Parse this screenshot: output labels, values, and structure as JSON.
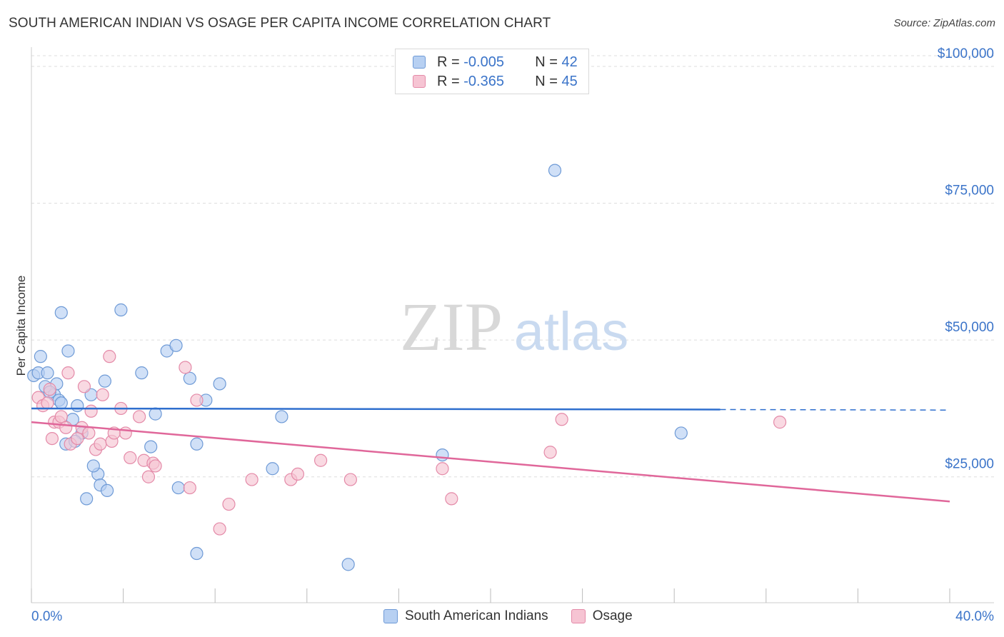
{
  "title": "SOUTH AMERICAN INDIAN VS OSAGE PER CAPITA INCOME CORRELATION CHART",
  "source": "Source: ZipAtlas.com",
  "watermark": {
    "zip": "ZIP",
    "atlas": "atlas"
  },
  "legend_stats": [
    {
      "r_label": "R =",
      "r_value": "-0.005",
      "n_label": "N =",
      "n_value": "42"
    },
    {
      "r_label": "R =",
      "r_value": "-0.365",
      "n_label": "N =",
      "n_value": "45"
    }
  ],
  "colors": {
    "blue_fill": "#b7d0f2",
    "blue_stroke": "#6e9ad6",
    "blue_line": "#2f6fce",
    "pink_fill": "#f6c4d3",
    "pink_stroke": "#e48aa8",
    "pink_line": "#e0679a",
    "tick_text": "#3b74c9",
    "grid": "#dddddd"
  },
  "chart_data": {
    "type": "scatter",
    "title": "SOUTH AMERICAN INDIAN VS OSAGE PER CAPITA INCOME CORRELATION CHART",
    "xlabel": "",
    "ylabel": "Per Capita Income",
    "xlim": [
      0,
      40
    ],
    "ylim": [
      2000,
      103000
    ],
    "x_tick_labels": [
      "0.0%",
      "40.0%"
    ],
    "y_ticks": [
      25000,
      50000,
      75000,
      100000
    ],
    "y_tick_labels": [
      "$25,000",
      "$50,000",
      "$75,000",
      "$100,000"
    ],
    "series": [
      {
        "name": "South American Indians",
        "r": -0.005,
        "n": 42,
        "trend": {
          "x0": 0,
          "y0": 37500,
          "x1": 30,
          "y1": 37300,
          "dash_x1": 40,
          "dash_y1": 37200
        },
        "points": [
          [
            0.1,
            43500
          ],
          [
            0.3,
            44000
          ],
          [
            0.4,
            47000
          ],
          [
            0.6,
            41500
          ],
          [
            0.7,
            44000
          ],
          [
            1.0,
            40000
          ],
          [
            1.1,
            42000
          ],
          [
            1.2,
            39000
          ],
          [
            1.3,
            38500
          ],
          [
            1.5,
            31000
          ],
          [
            1.6,
            48000
          ],
          [
            1.8,
            35500
          ],
          [
            2.0,
            38000
          ],
          [
            2.2,
            33000
          ],
          [
            2.4,
            21000
          ],
          [
            2.6,
            40000
          ],
          [
            2.9,
            25500
          ],
          [
            3.0,
            23500
          ],
          [
            3.2,
            42500
          ],
          [
            3.3,
            22500
          ],
          [
            3.9,
            55500
          ],
          [
            4.8,
            44000
          ],
          [
            5.2,
            30500
          ],
          [
            5.4,
            36500
          ],
          [
            5.9,
            48000
          ],
          [
            6.3,
            49000
          ],
          [
            6.4,
            23000
          ],
          [
            6.9,
            43000
          ],
          [
            7.2,
            31000
          ],
          [
            7.6,
            39000
          ],
          [
            8.2,
            42000
          ],
          [
            10.9,
            36000
          ],
          [
            10.5,
            26500
          ],
          [
            7.2,
            11000
          ],
          [
            13.8,
            9000
          ],
          [
            17.9,
            29000
          ],
          [
            22.8,
            81000
          ],
          [
            28.3,
            33000
          ],
          [
            1.3,
            55000
          ],
          [
            0.8,
            40500
          ],
          [
            2.7,
            27000
          ],
          [
            1.9,
            31500
          ]
        ]
      },
      {
        "name": "Osage",
        "r": -0.365,
        "n": 45,
        "trend": {
          "x0": 0,
          "y0": 35000,
          "x1": 40,
          "y1": 20500
        },
        "points": [
          [
            0.3,
            39500
          ],
          [
            0.5,
            38000
          ],
          [
            0.8,
            41000
          ],
          [
            0.9,
            32000
          ],
          [
            1.0,
            35000
          ],
          [
            1.2,
            35000
          ],
          [
            1.3,
            36000
          ],
          [
            1.6,
            44000
          ],
          [
            1.7,
            31000
          ],
          [
            2.0,
            32000
          ],
          [
            2.2,
            34000
          ],
          [
            2.3,
            41500
          ],
          [
            2.5,
            33000
          ],
          [
            2.8,
            30000
          ],
          [
            3.0,
            31000
          ],
          [
            3.1,
            40000
          ],
          [
            3.4,
            47000
          ],
          [
            3.5,
            31500
          ],
          [
            3.9,
            37500
          ],
          [
            4.1,
            33000
          ],
          [
            4.3,
            28500
          ],
          [
            4.7,
            36000
          ],
          [
            4.9,
            28000
          ],
          [
            5.1,
            25000
          ],
          [
            5.3,
            27500
          ],
          [
            5.4,
            27000
          ],
          [
            6.7,
            45000
          ],
          [
            6.9,
            23000
          ],
          [
            7.2,
            39000
          ],
          [
            8.2,
            15500
          ],
          [
            8.6,
            20000
          ],
          [
            9.6,
            24500
          ],
          [
            11.3,
            24500
          ],
          [
            11.6,
            25500
          ],
          [
            12.6,
            28000
          ],
          [
            13.9,
            24500
          ],
          [
            17.9,
            26500
          ],
          [
            18.3,
            21000
          ],
          [
            22.6,
            29500
          ],
          [
            23.1,
            35500
          ],
          [
            32.6,
            35000
          ],
          [
            0.7,
            38500
          ],
          [
            1.5,
            34000
          ],
          [
            2.6,
            37000
          ],
          [
            3.6,
            33000
          ]
        ]
      }
    ]
  }
}
